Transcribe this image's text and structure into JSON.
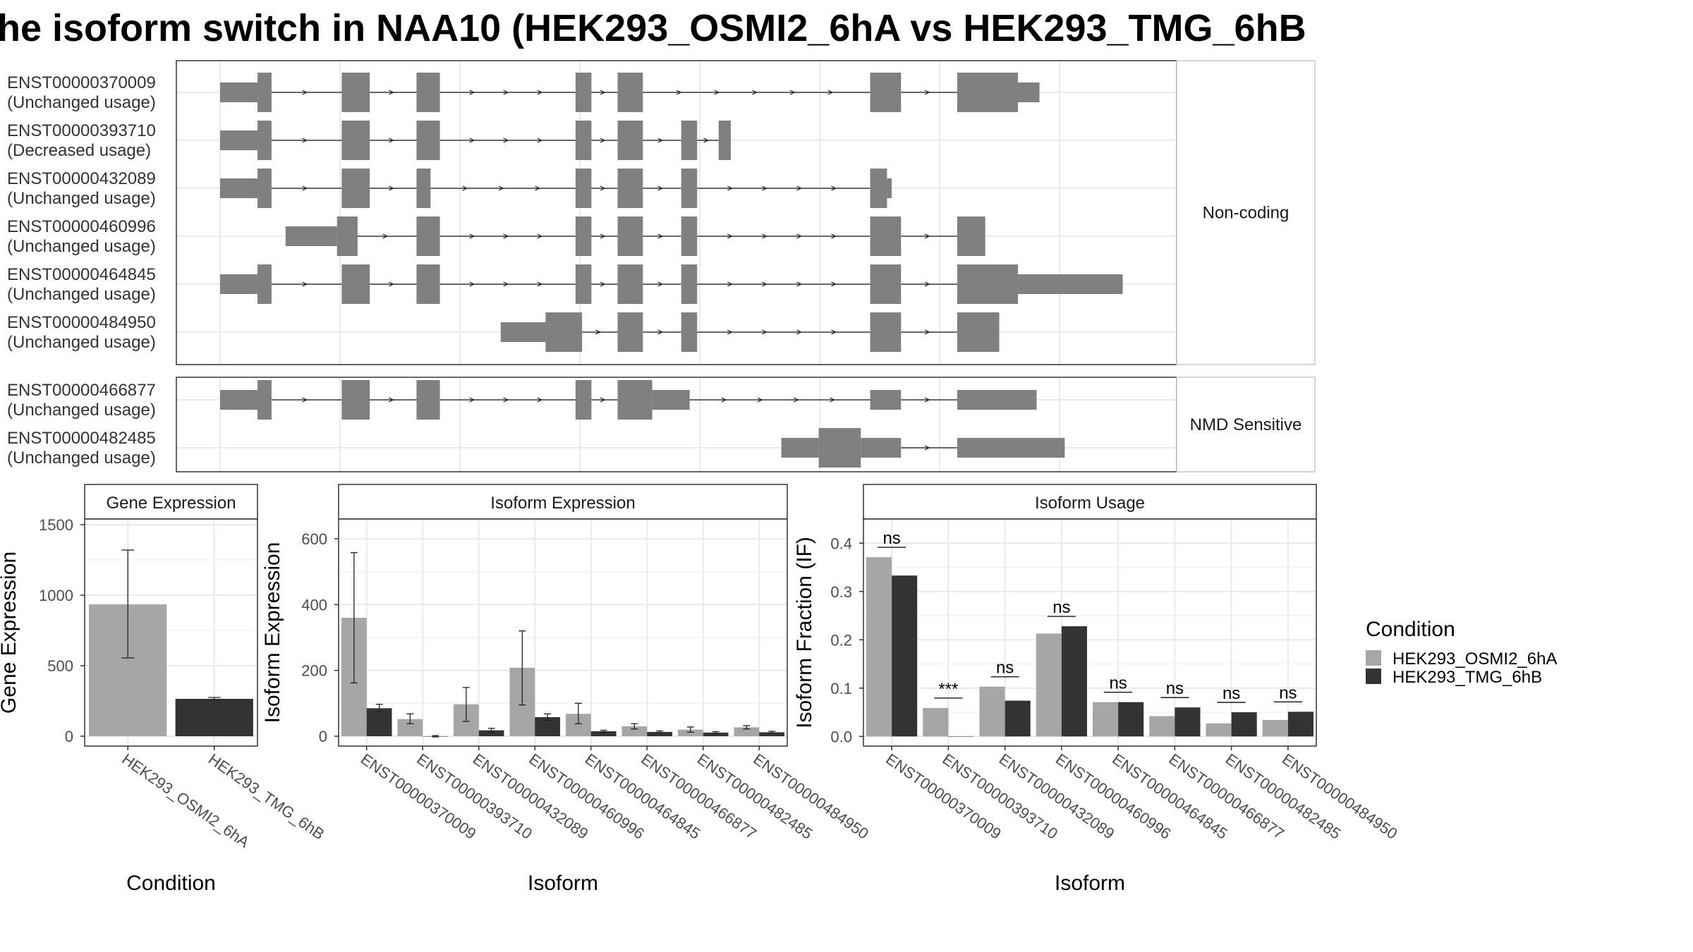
{
  "title": "he isoform switch in NAA10 (HEK293_OSMI2_6hA vs HEK293_TMG_6hB",
  "colors": {
    "condition_a": "#a6a6a6",
    "condition_b": "#333333",
    "exon": "#808080",
    "grid": "#ebebeb",
    "strip_bg": "#ffffff",
    "border": "#333333"
  },
  "structure": {
    "groups": [
      {
        "name": "Non-coding",
        "transcripts": [
          {
            "id": "ENST00000370009",
            "usage": "(Unchanged usage)",
            "exons": [
              [
                0,
                0.04,
                "t"
              ],
              [
                0.04,
                0.055,
                "f"
              ],
              [
                0.13,
                0.16,
                "f"
              ],
              [
                0.21,
                0.235,
                "f"
              ],
              [
                0.38,
                0.397,
                "f"
              ],
              [
                0.425,
                0.452,
                "f"
              ],
              [
                0.695,
                0.728,
                "f"
              ],
              [
                0.788,
                0.853,
                "f"
              ],
              [
                0.853,
                0.876,
                "t"
              ]
            ]
          },
          {
            "id": "ENST00000393710",
            "usage": "(Decreased usage)",
            "exons": [
              [
                0,
                0.04,
                "t"
              ],
              [
                0.04,
                0.055,
                "f"
              ],
              [
                0.13,
                0.16,
                "f"
              ],
              [
                0.21,
                0.235,
                "f"
              ],
              [
                0.38,
                0.397,
                "f"
              ],
              [
                0.425,
                0.452,
                "f"
              ],
              [
                0.493,
                0.51,
                "f"
              ],
              [
                0.533,
                0.546,
                "f"
              ]
            ]
          },
          {
            "id": "ENST00000432089",
            "usage": "(Unchanged usage)",
            "exons": [
              [
                0,
                0.04,
                "t"
              ],
              [
                0.04,
                0.055,
                "f"
              ],
              [
                0.13,
                0.16,
                "f"
              ],
              [
                0.21,
                0.225,
                "f"
              ],
              [
                0.38,
                0.397,
                "f"
              ],
              [
                0.425,
                0.452,
                "f"
              ],
              [
                0.493,
                0.51,
                "f"
              ],
              [
                0.695,
                0.713,
                "f"
              ],
              [
                0.713,
                0.718,
                "t"
              ]
            ]
          },
          {
            "id": "ENST00000460996",
            "usage": "(Unchanged usage)",
            "exons": [
              [
                0.07,
                0.125,
                "t"
              ],
              [
                0.125,
                0.147,
                "f"
              ],
              [
                0.21,
                0.235,
                "f"
              ],
              [
                0.38,
                0.397,
                "f"
              ],
              [
                0.425,
                0.452,
                "f"
              ],
              [
                0.493,
                0.51,
                "f"
              ],
              [
                0.695,
                0.728,
                "f"
              ],
              [
                0.788,
                0.818,
                "f"
              ]
            ]
          },
          {
            "id": "ENST00000464845",
            "usage": "(Unchanged usage)",
            "exons": [
              [
                0,
                0.04,
                "t"
              ],
              [
                0.04,
                0.055,
                "f"
              ],
              [
                0.13,
                0.16,
                "f"
              ],
              [
                0.21,
                0.235,
                "f"
              ],
              [
                0.38,
                0.397,
                "f"
              ],
              [
                0.425,
                0.452,
                "f"
              ],
              [
                0.493,
                0.51,
                "f"
              ],
              [
                0.695,
                0.728,
                "f"
              ],
              [
                0.788,
                0.853,
                "f"
              ],
              [
                0.853,
                0.965,
                "t"
              ]
            ]
          },
          {
            "id": "ENST00000484950",
            "usage": "(Unchanged usage)",
            "exons": [
              [
                0.3,
                0.348,
                "t"
              ],
              [
                0.348,
                0.387,
                "f"
              ],
              [
                0.425,
                0.452,
                "f"
              ],
              [
                0.493,
                0.51,
                "f"
              ],
              [
                0.695,
                0.728,
                "f"
              ],
              [
                0.788,
                0.833,
                "f"
              ]
            ]
          }
        ]
      },
      {
        "name": "NMD Sensitive",
        "transcripts": [
          {
            "id": "ENST00000466877",
            "usage": "(Unchanged usage)",
            "exons": [
              [
                0,
                0.04,
                "t"
              ],
              [
                0.04,
                0.055,
                "f"
              ],
              [
                0.13,
                0.16,
                "f"
              ],
              [
                0.21,
                0.235,
                "f"
              ],
              [
                0.38,
                0.397,
                "f"
              ],
              [
                0.425,
                0.462,
                "f"
              ],
              [
                0.462,
                0.502,
                "t"
              ],
              [
                0.695,
                0.728,
                "t"
              ],
              [
                0.788,
                0.873,
                "t"
              ]
            ]
          },
          {
            "id": "ENST00000482485",
            "usage": "(Unchanged usage)",
            "exons": [
              [
                0.6,
                0.64,
                "t"
              ],
              [
                0.64,
                0.685,
                "f"
              ],
              [
                0.685,
                0.728,
                "t"
              ],
              [
                0.788,
                0.903,
                "t"
              ]
            ]
          }
        ]
      }
    ]
  },
  "chart_data": [
    {
      "type": "bar",
      "title": "Gene Expression",
      "xlabel": "Condition",
      "ylabel": "Gene Expression",
      "ylim": [
        -70,
        1540
      ],
      "yticks": [
        0,
        500,
        1000,
        1500
      ],
      "categories": [
        "HEK293_OSMI2_6hA",
        "HEK293_TMG_6hB"
      ],
      "values": [
        935,
        265
      ],
      "errors": [
        [
          555,
          1320
        ],
        [
          255,
          275
        ]
      ],
      "grid": true
    },
    {
      "type": "bar",
      "title": "Isoform Expression",
      "xlabel": "Isoform",
      "ylabel": "Isoform Expression",
      "ylim": [
        -30,
        660
      ],
      "yticks": [
        0,
        200,
        400,
        600
      ],
      "categories": [
        "ENST00000370009",
        "ENST00000393710",
        "ENST00000432089",
        "ENST00000460996",
        "ENST00000464845",
        "ENST00000466877",
        "ENST00000482485",
        "ENST00000484950"
      ],
      "series": [
        {
          "name": "HEK293_OSMI2_6hA",
          "values": [
            360,
            52,
            97,
            208,
            68,
            30,
            20,
            27
          ],
          "errors": [
            [
              162,
              558
            ],
            [
              38,
              68
            ],
            [
              45,
              148
            ],
            [
              95,
              320
            ],
            [
              38,
              100
            ],
            [
              22,
              38
            ],
            [
              12,
              28
            ],
            [
              22,
              32
            ]
          ]
        },
        {
          "name": "HEK293_TMG_6hB",
          "values": [
            85,
            0,
            18,
            58,
            15,
            13,
            11,
            12
          ],
          "errors": [
            [
              75,
              97
            ],
            [
              -2,
              2
            ],
            [
              12,
              24
            ],
            [
              48,
              68
            ],
            [
              12,
              18
            ],
            [
              10,
              16
            ],
            [
              8,
              14
            ],
            [
              9,
              15
            ]
          ]
        }
      ],
      "grid": true
    },
    {
      "type": "bar",
      "title": "Isoform Usage",
      "xlabel": "Isoform",
      "ylabel": "Isoform Fraction (IF)",
      "ylim": [
        -0.02,
        0.45
      ],
      "yticks": [
        0.0,
        0.1,
        0.2,
        0.3,
        0.4
      ],
      "ytick_labels": [
        "0.0",
        "0.1",
        "0.2",
        "0.3",
        "0.4"
      ],
      "categories": [
        "ENST00000370009",
        "ENST00000393710",
        "ENST00000432089",
        "ENST00000460996",
        "ENST00000464845",
        "ENST00000466877",
        "ENST00000482485",
        "ENST00000484950"
      ],
      "series": [
        {
          "name": "HEK293_OSMI2_6hA",
          "values": [
            0.371,
            0.059,
            0.103,
            0.213,
            0.071,
            0.042,
            0.027,
            0.034
          ]
        },
        {
          "name": "HEK293_TMG_6hB",
          "values": [
            0.333,
            0.0,
            0.074,
            0.228,
            0.071,
            0.06,
            0.05,
            0.051
          ]
        }
      ],
      "significance": [
        "ns",
        "***",
        "ns",
        "ns",
        "ns",
        "ns",
        "ns",
        "ns"
      ],
      "grid": true
    }
  ],
  "legend": {
    "title": "Condition",
    "items": [
      "HEK293_OSMI2_6hA",
      "HEK293_TMG_6hB"
    ],
    "placement": "right"
  }
}
